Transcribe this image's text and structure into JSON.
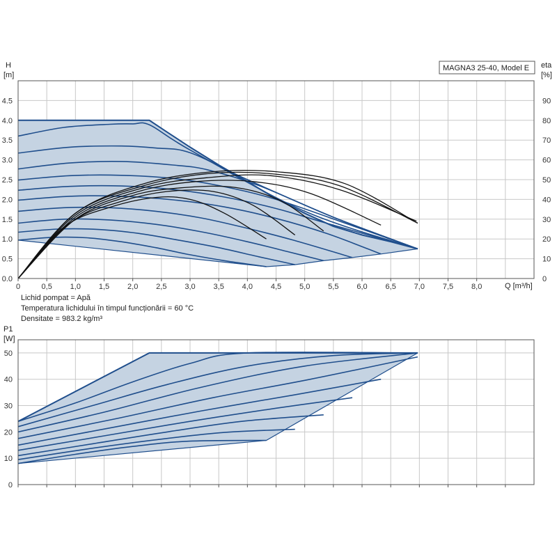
{
  "chart_data": [
    {
      "type": "line",
      "name": "head-and-efficiency",
      "model_label": "MAGNA3 25-40, Model E",
      "y_label_top": "H",
      "y_label_unit": "[m]",
      "y2_label_top": "eta",
      "y2_label_unit": "[%]",
      "x_unit_label": "Q [m³/h]",
      "xlim": [
        0,
        9.0
      ],
      "ylim": [
        0,
        5.0
      ],
      "y2lim": [
        0,
        100
      ],
      "x_ticks": [
        "0",
        "0,5",
        "1,0",
        "1,5",
        "2,0",
        "2,5",
        "3,0",
        "3,5",
        "4,0",
        "4,5",
        "5,0",
        "5,5",
        "6,0",
        "6,5",
        "7,0",
        "7,5",
        "8,0"
      ],
      "y_ticks": [
        "0.0",
        "0.5",
        "1.0",
        "1.5",
        "2.0",
        "2.5",
        "3.0",
        "3.5",
        "4.0",
        "4.5"
      ],
      "y2_ticks": [
        "0",
        "10",
        "20",
        "30",
        "40",
        "50",
        "60",
        "70",
        "80",
        "90"
      ],
      "grid": true,
      "colors": {
        "curve": "#1f4e8c",
        "fill": "#c5d3e2",
        "eta": "#111111"
      },
      "envelope_top": [
        [
          0,
          4.0
        ],
        [
          2.29,
          4.0
        ],
        [
          2.6,
          3.7
        ],
        [
          3.0,
          3.32
        ],
        [
          3.5,
          2.87
        ],
        [
          4.0,
          2.45
        ],
        [
          4.5,
          2.02
        ],
        [
          5.0,
          1.65
        ],
        [
          5.5,
          1.32
        ],
        [
          6.0,
          1.1
        ],
        [
          6.5,
          0.93
        ],
        [
          6.97,
          0.75
        ]
      ],
      "envelope_bottom": [
        [
          0,
          0.97
        ],
        [
          4.33,
          0.3
        ],
        [
          4.83,
          0.35
        ],
        [
          5.33,
          0.45
        ],
        [
          5.83,
          0.53
        ],
        [
          6.33,
          0.62
        ],
        [
          6.97,
          0.75
        ]
      ],
      "head_curves": [
        {
          "x": [
            0,
            0.6,
            1.2,
            1.8,
            2.4,
            3.0,
            3.6,
            4.33
          ],
          "y": [
            0.97,
            1.04,
            1.03,
            0.93,
            0.78,
            0.6,
            0.45,
            0.3
          ]
        },
        {
          "x": [
            0,
            0.7,
            1.4,
            2.1,
            2.8,
            3.5,
            4.2,
            4.83
          ],
          "y": [
            1.17,
            1.25,
            1.24,
            1.14,
            0.97,
            0.78,
            0.55,
            0.35
          ]
        },
        {
          "x": [
            0,
            0.8,
            1.6,
            2.4,
            3.2,
            4.0,
            4.7,
            5.33
          ],
          "y": [
            1.4,
            1.5,
            1.48,
            1.37,
            1.18,
            0.93,
            0.68,
            0.45
          ]
        },
        {
          "x": [
            0,
            0.8,
            1.6,
            2.4,
            3.2,
            4.0,
            4.8,
            5.83
          ],
          "y": [
            1.7,
            1.79,
            1.79,
            1.7,
            1.53,
            1.27,
            0.97,
            0.53
          ]
        },
        {
          "x": [
            0,
            0.9,
            1.8,
            2.7,
            3.6,
            4.5,
            5.4,
            6.33
          ],
          "y": [
            1.98,
            2.08,
            2.08,
            1.99,
            1.81,
            1.52,
            1.13,
            0.62
          ]
        },
        {
          "x": [
            0,
            0.9,
            1.8,
            2.7,
            3.6,
            4.5,
            5.4,
            6.97
          ],
          "y": [
            2.23,
            2.33,
            2.34,
            2.25,
            2.06,
            1.77,
            1.39,
            0.75
          ]
        },
        {
          "x": [
            0,
            0.9,
            1.8,
            2.7,
            3.5,
            4.5,
            5.8,
            6.97
          ],
          "y": [
            2.49,
            2.6,
            2.61,
            2.53,
            2.35,
            2.0,
            1.35,
            0.75
          ]
        },
        {
          "x": [
            0,
            0.9,
            1.8,
            2.7,
            3.3,
            4.2,
            5.5,
            6.97
          ],
          "y": [
            2.77,
            2.92,
            2.96,
            2.87,
            2.75,
            2.35,
            1.55,
            0.75
          ]
        },
        {
          "x": [
            0,
            0.9,
            1.8,
            2.4,
            3.0,
            4.0,
            5.5,
            6.97
          ],
          "y": [
            3.17,
            3.32,
            3.35,
            3.3,
            3.18,
            2.5,
            1.55,
            0.75
          ]
        },
        {
          "x": [
            0,
            0.8,
            1.6,
            2.0,
            2.3,
            3.0,
            5.0,
            6.97
          ],
          "y": [
            3.6,
            3.82,
            3.9,
            3.91,
            3.88,
            3.25,
            1.7,
            0.75
          ]
        }
      ],
      "eta_curves": [
        {
          "x": [
            0,
            0.8,
            1.6,
            2.4,
            3.0,
            3.6,
            4.33
          ],
          "y": [
            0,
            26,
            36,
            41,
            40,
            33,
            20
          ]
        },
        {
          "x": [
            0,
            0.9,
            1.8,
            2.6,
            3.4,
            4.1,
            4.83
          ],
          "y": [
            0,
            28,
            39,
            44,
            44,
            37,
            22
          ]
        },
        {
          "x": [
            0,
            1.0,
            2.0,
            2.9,
            3.8,
            4.6,
            5.33
          ],
          "y": [
            0,
            30,
            42,
            46,
            46,
            39,
            24
          ]
        },
        {
          "x": [
            0,
            1.0,
            2.1,
            3.1,
            4.1,
            5.1,
            6.33
          ],
          "y": [
            0,
            31,
            44,
            49,
            49,
            43,
            27
          ]
        },
        {
          "x": [
            0,
            1.0,
            2.2,
            3.3,
            4.4,
            5.6,
            6.95
          ],
          "y": [
            0,
            32,
            46,
            51,
            52,
            45,
            29
          ]
        },
        {
          "x": [
            0,
            1.0,
            2.2,
            3.3,
            4.4,
            5.6,
            6.97
          ],
          "y": [
            0,
            33,
            47,
            53,
            53,
            47,
            28
          ]
        },
        {
          "x": [
            0,
            1.0,
            2.2,
            3.4,
            4.5,
            5.7,
            6.97
          ],
          "y": [
            0,
            33,
            48,
            54,
            54,
            48,
            28
          ]
        }
      ]
    },
    {
      "type": "line",
      "name": "power",
      "y_label_top": "P1",
      "y_label_unit": "[W]",
      "xlim": [
        0,
        9.0
      ],
      "ylim": [
        0,
        55
      ],
      "y_ticks": [
        "0",
        "10",
        "20",
        "30",
        "40",
        "50"
      ],
      "grid": true,
      "colors": {
        "curve": "#1f4e8c",
        "fill": "#c5d3e2"
      },
      "envelope_top": [
        [
          0,
          24
        ],
        [
          2.29,
          50
        ],
        [
          6.97,
          50
        ]
      ],
      "envelope_bottom": [
        [
          0,
          8
        ],
        [
          4.33,
          16.8
        ],
        [
          6.97,
          50
        ]
      ],
      "power_curves": [
        {
          "x": [
            0,
            1.0,
            2.0,
            3.0,
            4.33
          ],
          "y": [
            8,
            11.5,
            14.5,
            16.5,
            16.8
          ]
        },
        {
          "x": [
            0,
            1.2,
            2.4,
            3.6,
            4.83
          ],
          "y": [
            9.5,
            13.5,
            17,
            19.8,
            21
          ]
        },
        {
          "x": [
            0,
            1.3,
            2.6,
            3.9,
            5.33
          ],
          "y": [
            11,
            15.5,
            20,
            24,
            26.5
          ]
        },
        {
          "x": [
            0,
            1.5,
            3.0,
            4.5,
            5.83
          ],
          "y": [
            13,
            18.5,
            24,
            29,
            33
          ]
        },
        {
          "x": [
            0,
            1.6,
            3.2,
            4.8,
            6.33
          ],
          "y": [
            15,
            21.5,
            28,
            34,
            40
          ]
        },
        {
          "x": [
            0,
            1.7,
            3.4,
            5.1,
            6.97
          ],
          "y": [
            17.5,
            25,
            33,
            40,
            48.5
          ]
        },
        {
          "x": [
            0,
            1.5,
            3.2,
            5.0,
            6.97
          ],
          "y": [
            20,
            27.5,
            37,
            45,
            50
          ]
        },
        {
          "x": [
            0,
            1.3,
            2.6,
            4.0,
            5.5,
            6.97
          ],
          "y": [
            22,
            30,
            38,
            45,
            49,
            50
          ]
        },
        {
          "x": [
            0,
            1.0,
            2.0,
            3.0,
            4.0,
            6.97
          ],
          "y": [
            24,
            31,
            39,
            46,
            50,
            50
          ]
        }
      ]
    }
  ],
  "notes": {
    "line1": "Lichid pompat = Apă",
    "line2": "Temperatura lichidului în timpul funcționării = 60 °C",
    "line3": "Densitate = 983.2 kg/m³"
  }
}
